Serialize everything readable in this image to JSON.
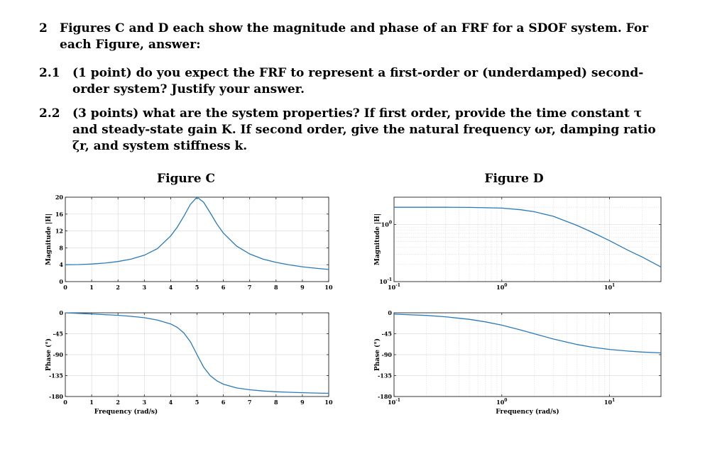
{
  "question": {
    "number": "2",
    "text_line1": "Figures C and D each show the magnitude and phase of an FRF for a SDOF system. For",
    "text_line2": "each Figure, answer:",
    "parts": [
      {
        "number": "2.1",
        "line1": "(1 point) do you expect the FRF to represent a first-order or (underdamped) second-",
        "line2": "order system? Justify your answer."
      },
      {
        "number": "2.2",
        "line1": "(3 points) what are the system properties? If first order, provide the time constant τ",
        "line2": "and steady-state gain K. If second order, give the natural frequency ωr, damping ratio",
        "line3": "ζr, and system stiffness k."
      }
    ]
  },
  "figure_c": {
    "title": "Figure C"
  },
  "figure_d": {
    "title": "Figure D"
  },
  "chart_data": [
    {
      "type": "line",
      "title": "Figure C",
      "ylabel": "Magnitude |H|",
      "xlim": [
        0,
        10
      ],
      "ylim": [
        0,
        20
      ],
      "xticks": [
        "0",
        "1",
        "2",
        "3",
        "4",
        "5",
        "6",
        "7",
        "8",
        "9",
        "10"
      ],
      "yticks": [
        "0",
        "4",
        "8",
        "12",
        "16",
        "20"
      ],
      "series": [
        {
          "x": [
            0,
            0.5,
            1,
            1.5,
            2,
            2.5,
            3,
            3.5,
            4,
            4.25,
            4.5,
            4.75,
            5,
            5.25,
            5.5,
            5.75,
            6,
            6.5,
            7,
            7.5,
            8,
            8.5,
            9,
            9.5,
            10
          ],
          "y": [
            4.0,
            4.04,
            4.17,
            4.39,
            4.76,
            5.33,
            6.25,
            7.81,
            10.8,
            12.9,
            15.5,
            18.3,
            20.0,
            18.8,
            16.3,
            13.7,
            11.5,
            8.44,
            6.55,
            5.35,
            4.55,
            3.97,
            3.52,
            3.17,
            2.88
          ]
        }
      ],
      "color": "#2a7ab9",
      "grid": true
    },
    {
      "type": "line",
      "ylabel": "Phase (°)",
      "xlabel": "Frequency (rad/s)",
      "xlim": [
        0,
        10
      ],
      "ylim": [
        -180,
        0
      ],
      "xticks": [
        "0",
        "1",
        "2",
        "3",
        "4",
        "5",
        "6",
        "7",
        "8",
        "9",
        "10"
      ],
      "yticks": [
        "0",
        "-45",
        "-90",
        "-135",
        "-180"
      ],
      "series": [
        {
          "x": [
            0,
            0.5,
            1,
            1.5,
            2,
            2.5,
            3,
            3.5,
            4,
            4.25,
            4.5,
            4.75,
            5,
            5.25,
            5.5,
            5.75,
            6,
            6.5,
            7,
            7.5,
            8,
            8.5,
            9,
            9.5,
            10
          ],
          "y": [
            0,
            -1.2,
            -2.4,
            -3.9,
            -5.4,
            -7.6,
            -10.6,
            -15.6,
            -24.0,
            -31.3,
            -43.4,
            -62.2,
            -90,
            -116.8,
            -135.0,
            -146.1,
            -153.4,
            -161.6,
            -165.5,
            -168.1,
            -169.8,
            -170.9,
            -171.8,
            -172.5,
            -173.1
          ]
        }
      ],
      "color": "#2a7ab9",
      "grid": true
    },
    {
      "type": "line",
      "title": "Figure D",
      "ylabel": "Magnitude |H|",
      "xscale": "log",
      "yscale": "log",
      "xlim": [
        0.1,
        30
      ],
      "ylim": [
        0.1,
        3
      ],
      "xticks": [
        "10⁻¹",
        "10⁰",
        "10¹"
      ],
      "yticks": [
        "10⁻¹",
        "10⁰"
      ],
      "series": [
        {
          "x": [
            0.1,
            0.2,
            0.3,
            0.5,
            0.7,
            1,
            1.5,
            2,
            3,
            5,
            7,
            10,
            15,
            20,
            30
          ],
          "y": [
            2.0,
            2.0,
            2.0,
            1.99,
            1.96,
            1.93,
            1.81,
            1.67,
            1.39,
            0.96,
            0.72,
            0.52,
            0.35,
            0.27,
            0.18
          ]
        }
      ],
      "color": "#2a7ab9",
      "grid": true
    },
    {
      "type": "line",
      "ylabel": "Phase (°)",
      "xlabel": "Frequency (rad/s)",
      "xscale": "log",
      "xlim": [
        0.1,
        30
      ],
      "ylim": [
        -180,
        0
      ],
      "xticks": [
        "10⁻¹",
        "10⁰",
        "10¹"
      ],
      "yticks": [
        "0",
        "-45",
        "-90",
        "-135",
        "-180"
      ],
      "series": [
        {
          "x": [
            0.1,
            0.2,
            0.3,
            0.5,
            0.7,
            1,
            1.5,
            2,
            3,
            5,
            7,
            10,
            15,
            20,
            30
          ],
          "y": [
            -2.9,
            -5.7,
            -8.5,
            -14.0,
            -19.3,
            -26.6,
            -36.9,
            -45,
            -56.3,
            -68.2,
            -74.1,
            -78.7,
            -82.4,
            -84.3,
            -86.2
          ]
        }
      ],
      "color": "#2a7ab9",
      "grid": true
    }
  ]
}
